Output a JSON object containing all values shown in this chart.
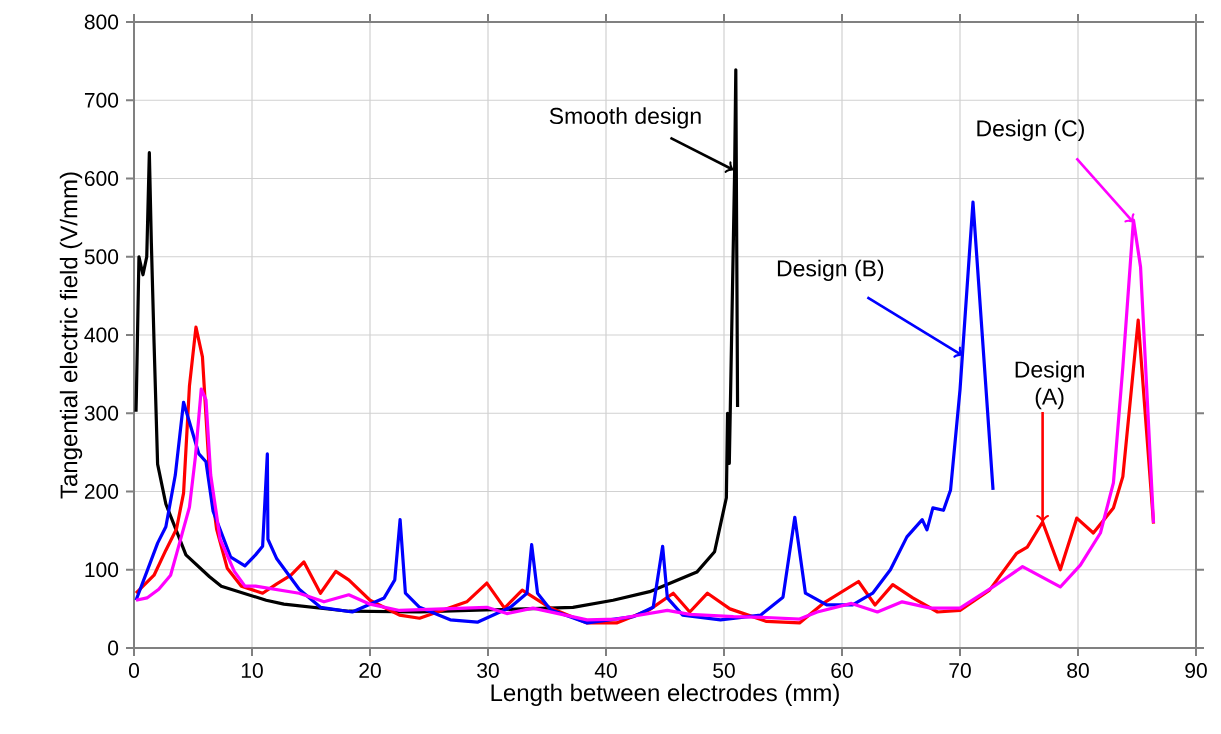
{
  "chart_data": {
    "type": "line",
    "xlabel": "Length between electrodes (mm)",
    "ylabel": "Tangential electric field (V/mm)",
    "xlim": [
      0,
      90
    ],
    "ylim": [
      0,
      800
    ],
    "xticks": [
      0,
      10,
      20,
      30,
      40,
      50,
      60,
      70,
      80,
      90
    ],
    "yticks": [
      0,
      100,
      200,
      300,
      400,
      500,
      600,
      700,
      800
    ],
    "grid": true,
    "series": [
      {
        "color": "#000000",
        "x": [
          0.17,
          0.2,
          0.42,
          0.76,
          1.08,
          1.3,
          1.47,
          1.7,
          2.0,
          2.7,
          4.4,
          6.4,
          7.4,
          11.2,
          12.7,
          18.2,
          24.2,
          37.2,
          40.6,
          43.7,
          47.7,
          49.2,
          50.2,
          50.3,
          50.45,
          50.9,
          51.0,
          51.15
        ],
        "values": [
          302,
          322,
          500,
          477,
          500,
          633,
          518,
          390,
          235,
          184,
          119,
          91,
          79,
          61,
          56,
          47,
          46,
          52,
          61,
          72,
          97,
          123,
          192,
          300,
          236,
          610,
          739,
          308
        ]
      },
      {
        "color": "#ff0000",
        "x": [
          0.17,
          1.7,
          2.7,
          3.6,
          4.2,
          4.7,
          5.25,
          5.8,
          6.4,
          7.0,
          7.9,
          9.1,
          10.9,
          12.1,
          13.3,
          14.4,
          15.8,
          17.1,
          18.2,
          20.0,
          22.5,
          24.2,
          28.2,
          29.9,
          31.4,
          32.9,
          35.3,
          38.4,
          40.9,
          43.7,
          45.7,
          47.1,
          48.6,
          50.5,
          53.6,
          56.4,
          58.4,
          61.4,
          62.8,
          64.3,
          66.0,
          68.1,
          70.0,
          72.5,
          74.8,
          75.7,
          77.0,
          78.5,
          79.9,
          81.3,
          83.0,
          83.8,
          85.1,
          86.4
        ],
        "values": [
          70,
          93,
          125,
          152,
          198,
          335,
          410,
          372,
          221,
          152,
          102,
          79,
          70,
          82,
          93,
          110,
          70,
          98,
          87,
          61,
          42,
          38,
          59,
          83,
          51,
          74,
          51,
          32,
          32,
          49,
          70,
          46,
          70,
          50,
          34,
          32,
          57,
          85,
          55,
          81,
          64,
          46,
          48,
          74,
          121,
          129,
          161,
          100,
          166,
          147,
          179,
          219,
          419,
          159
        ]
      },
      {
        "color": "#0000ff",
        "x": [
          0.17,
          1.1,
          2.0,
          2.7,
          3.5,
          4.2,
          5.5,
          6.1,
          6.7,
          8.2,
          9.4,
          10.3,
          10.9,
          11.3,
          11.35,
          12.1,
          14.0,
          15.8,
          18.5,
          21.2,
          22.1,
          22.55,
          23.0,
          24.2,
          26.8,
          29.1,
          31.9,
          33.3,
          33.7,
          34.2,
          35.3,
          38.4,
          42.3,
          44.0,
          44.8,
          45.2,
          46.5,
          49.7,
          53.1,
          55.0,
          56.0,
          56.9,
          58.7,
          60.9,
          62.6,
          64.1,
          65.5,
          66.8,
          67.2,
          67.7,
          68.6,
          69.2,
          70.0,
          71.1,
          72.8
        ],
        "values": [
          61,
          98,
          134,
          155,
          221,
          314,
          248,
          238,
          175,
          116,
          105,
          119,
          130,
          248,
          139,
          114,
          75,
          52,
          46,
          64,
          87,
          164,
          70,
          52,
          36,
          33,
          52,
          70,
          132,
          70,
          49,
          32,
          40,
          52,
          130,
          64,
          42,
          36,
          42,
          65,
          167,
          70,
          55,
          55,
          70,
          100,
          142,
          164,
          151,
          179,
          176,
          202,
          330,
          570,
          202
        ]
      },
      {
        "color": "#ff00ff",
        "x": [
          0.17,
          1.1,
          2.1,
          3.1,
          3.6,
          4.7,
          5.2,
          5.7,
          6.1,
          6.5,
          7.3,
          8.5,
          9.4,
          10.3,
          14.0,
          16.1,
          18.2,
          20.0,
          22.5,
          29.9,
          31.6,
          33.8,
          38.4,
          40.9,
          45.2,
          47.1,
          50.8,
          53.6,
          56.4,
          57.9,
          60.8,
          63.0,
          65.1,
          67.5,
          70.0,
          72.8,
          75.3,
          78.5,
          80.2,
          81.9,
          83.0,
          83.8,
          84.7,
          85.3,
          86.4
        ],
        "values": [
          61,
          64,
          75,
          93,
          120,
          180,
          244,
          331,
          317,
          221,
          139,
          98,
          79,
          79,
          70,
          59,
          68,
          56,
          48,
          52,
          44,
          51,
          36,
          37,
          48,
          43,
          40,
          39,
          37,
          46,
          57,
          46,
          59,
          51,
          51,
          78,
          104,
          78,
          106,
          147,
          211,
          359,
          547,
          487,
          160
        ]
      }
    ],
    "annotations": [
      {
        "text": "Smooth design",
        "x": 50.8,
        "y": 611
      },
      {
        "text": "Design (A)",
        "x": 77.0,
        "y": 161
      },
      {
        "text": "Design (B)",
        "x": 70.2,
        "y": 374
      },
      {
        "text": "Design (C)",
        "x": 84.7,
        "y": 544
      }
    ]
  }
}
